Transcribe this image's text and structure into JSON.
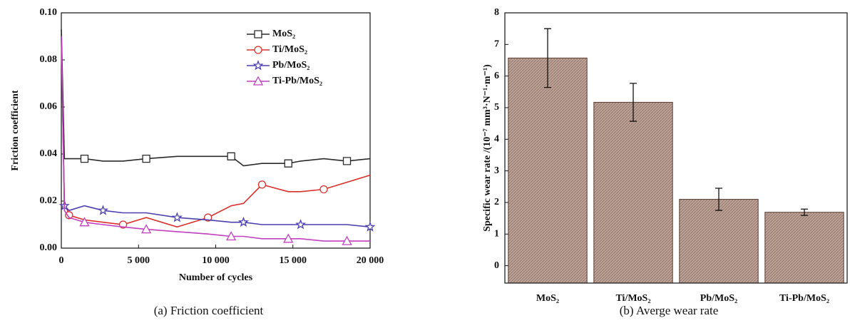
{
  "chart_data": [
    {
      "type": "line",
      "caption": "(a) Friction coefficient",
      "x_label": "Number of cycles",
      "y_label": "Friction coefficient",
      "x": [
        0,
        200,
        500,
        1500,
        2700,
        4000,
        5500,
        7500,
        9500,
        11000,
        11800,
        13000,
        14700,
        15500,
        17000,
        18500,
        20000
      ],
      "series": [
        {
          "name": "MoS₂",
          "color": "#2a2a2a",
          "marker": "square",
          "values": [
            0.093,
            0.038,
            0.038,
            0.038,
            0.037,
            0.037,
            0.038,
            0.039,
            0.039,
            0.039,
            0.035,
            0.036,
            0.036,
            0.037,
            0.038,
            0.037,
            0.038
          ]
        },
        {
          "name": "Ti/MoS₂",
          "color": "#d9302a",
          "marker": "circle",
          "values": [
            0.09,
            0.02,
            0.014,
            0.012,
            0.011,
            0.01,
            0.013,
            0.009,
            0.013,
            0.018,
            0.019,
            0.027,
            0.024,
            0.024,
            0.025,
            0.028,
            0.031
          ]
        },
        {
          "name": "Pb/MoS₂",
          "color": "#4b3fb0",
          "marker": "star",
          "values": [
            0.09,
            0.018,
            0.016,
            0.018,
            0.016,
            0.015,
            0.015,
            0.013,
            0.012,
            0.011,
            0.011,
            0.01,
            0.01,
            0.01,
            0.01,
            0.01,
            0.009
          ]
        },
        {
          "name": "Ti-Pb/MoS₂",
          "color": "#c23fc0",
          "marker": "triangle",
          "values": [
            0.09,
            0.016,
            0.013,
            0.011,
            0.01,
            0.009,
            0.008,
            0.007,
            0.006,
            0.005,
            0.005,
            0.004,
            0.004,
            0.004,
            0.003,
            0.003,
            0.003
          ]
        }
      ],
      "xlim": [
        0,
        20000
      ],
      "xticks": [
        0,
        {
          "value": 5000,
          "label": "5 000"
        },
        {
          "value": 10000,
          "label": "10 000"
        },
        {
          "value": 15000,
          "label": "15 000"
        },
        {
          "value": 20000,
          "label": "20 000"
        }
      ],
      "ylim": [
        0,
        0.1
      ],
      "yticks": [
        {
          "value": 0,
          "label": "0.00"
        },
        0.02,
        0.04,
        0.06,
        0.08,
        {
          "value": 0.1,
          "label": "0.10"
        }
      ],
      "legend": "upper right",
      "grid": false
    },
    {
      "type": "bar",
      "caption": "(b) Averge wear rate",
      "y_label": "Specific wear rate /(10⁻⁷ mm³·N⁻¹·m⁻¹)",
      "categories": [
        "MoS₂",
        "Ti/MoS₂",
        "Pb/MoS₂",
        "Ti-Pb/MoS₂"
      ],
      "values": [
        6.57,
        5.17,
        2.1,
        1.69
      ],
      "errors": [
        0.93,
        0.6,
        0.35,
        0.1
      ],
      "color": "#b59a8e",
      "ylim": [
        -0.55,
        8
      ],
      "yticks": [
        0,
        1,
        2,
        3,
        4,
        5,
        6,
        7,
        8
      ],
      "grid": false
    }
  ]
}
